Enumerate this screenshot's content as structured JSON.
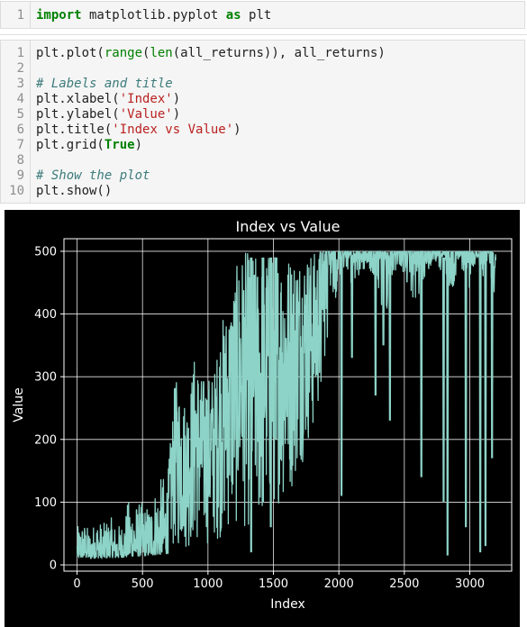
{
  "cells": [
    {
      "lines": [
        {
          "n": "1",
          "tokens": [
            {
              "t": "import",
              "c": "kw"
            },
            {
              "t": " matplotlib.pyplot ",
              "c": ""
            },
            {
              "t": "as",
              "c": "kw"
            },
            {
              "t": " plt",
              "c": ""
            }
          ]
        }
      ]
    },
    {
      "lines": [
        {
          "n": "1",
          "tokens": [
            {
              "t": "plt.plot(",
              "c": ""
            },
            {
              "t": "range",
              "c": "bi"
            },
            {
              "t": "(",
              "c": ""
            },
            {
              "t": "len",
              "c": "bi"
            },
            {
              "t": "(all_returns)), all_returns)",
              "c": ""
            }
          ]
        },
        {
          "n": "2",
          "tokens": []
        },
        {
          "n": "3",
          "tokens": [
            {
              "t": "# Labels and title",
              "c": "cm"
            }
          ]
        },
        {
          "n": "4",
          "tokens": [
            {
              "t": "plt.xlabel(",
              "c": ""
            },
            {
              "t": "'Index'",
              "c": "str"
            },
            {
              "t": ")",
              "c": ""
            }
          ]
        },
        {
          "n": "5",
          "tokens": [
            {
              "t": "plt.ylabel(",
              "c": ""
            },
            {
              "t": "'Value'",
              "c": "str"
            },
            {
              "t": ")",
              "c": ""
            }
          ]
        },
        {
          "n": "6",
          "tokens": [
            {
              "t": "plt.title(",
              "c": ""
            },
            {
              "t": "'Index vs Value'",
              "c": "str"
            },
            {
              "t": ")",
              "c": ""
            }
          ]
        },
        {
          "n": "7",
          "tokens": [
            {
              "t": "plt.grid(",
              "c": ""
            },
            {
              "t": "True",
              "c": "kw"
            },
            {
              "t": ")",
              "c": ""
            }
          ]
        },
        {
          "n": "8",
          "tokens": []
        },
        {
          "n": "9",
          "tokens": [
            {
              "t": "# Show the plot",
              "c": "cm"
            }
          ]
        },
        {
          "n": "10",
          "tokens": [
            {
              "t": "plt.show()",
              "c": ""
            }
          ]
        }
      ]
    }
  ],
  "colors": {
    "line": "#8dd3c7",
    "background": "#000000",
    "grid": "#ffffff",
    "text": "#ffffff"
  },
  "chart_data": {
    "type": "line",
    "title": "Index vs Value",
    "xlabel": "Index",
    "ylabel": "Value",
    "xlim": [
      -100,
      3320
    ],
    "ylim": [
      -10,
      520
    ],
    "xticks": [
      0,
      500,
      1000,
      1500,
      2000,
      2500,
      3000
    ],
    "yticks": [
      0,
      100,
      200,
      300,
      400,
      500
    ],
    "grid": true,
    "series": [
      {
        "x": [
          0,
          50,
          100,
          150,
          200,
          250,
          300,
          350,
          400,
          450,
          500,
          550,
          600,
          650,
          700,
          750,
          800,
          850,
          900,
          950,
          1000,
          1050,
          1100,
          1150,
          1200,
          1250,
          1300,
          1350,
          1400,
          1450,
          1500,
          1550,
          1600,
          1650,
          1700,
          1750,
          1800,
          1850,
          1900,
          1950,
          2000,
          2050,
          2100,
          2150,
          2200,
          2250,
          2300,
          2350,
          2400,
          2450,
          2500,
          2550,
          2600,
          2650,
          2700,
          2750,
          2800,
          2850,
          2900,
          2950,
          3000,
          3050,
          3100,
          3150,
          3200
        ],
        "y_low": [
          10,
          12,
          10,
          11,
          10,
          12,
          11,
          12,
          13,
          14,
          14,
          15,
          16,
          17,
          18,
          20,
          22,
          22,
          25,
          28,
          30,
          35,
          40,
          45,
          50,
          55,
          50,
          60,
          45,
          70,
          80,
          100,
          90,
          120,
          150,
          180,
          200,
          250,
          300,
          400,
          450,
          480,
          440,
          450,
          470,
          460,
          430,
          380,
          440,
          480,
          460,
          420,
          400,
          450,
          470,
          480,
          450,
          430,
          460,
          470,
          440,
          480,
          460,
          470,
          420
        ],
        "y_high": [
          60,
          70,
          55,
          75,
          65,
          80,
          60,
          70,
          110,
          100,
          100,
          95,
          130,
          140,
          160,
          300,
          270,
          260,
          340,
          300,
          300,
          310,
          390,
          410,
          460,
          500,
          500,
          500,
          480,
          500,
          500,
          500,
          500,
          500,
          500,
          500,
          500,
          500,
          500,
          500,
          500,
          500,
          500,
          500,
          500,
          500,
          500,
          500,
          500,
          500,
          500,
          500,
          500,
          500,
          500,
          500,
          500,
          500,
          500,
          500,
          500,
          500,
          500,
          500,
          500
        ],
        "y_dips": [
          [
            1330,
            20
          ],
          [
            1420,
            100
          ],
          [
            1480,
            60
          ],
          [
            1520,
            200
          ],
          [
            2020,
            110
          ],
          [
            2100,
            330
          ],
          [
            2280,
            270
          ],
          [
            2340,
            350
          ],
          [
            2390,
            230
          ],
          [
            2630,
            140
          ],
          [
            2800,
            100
          ],
          [
            2830,
            15
          ],
          [
            2970,
            60
          ],
          [
            3080,
            20
          ],
          [
            3120,
            30
          ],
          [
            3170,
            170
          ]
        ]
      }
    ]
  }
}
